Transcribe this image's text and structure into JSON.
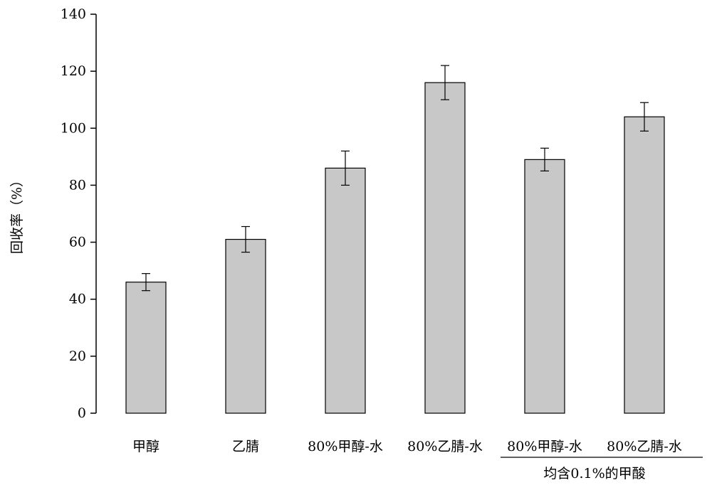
{
  "chart_data": {
    "type": "bar",
    "title": "",
    "xlabel": "",
    "ylabel": "回收率（%）",
    "ylim": [
      0,
      140
    ],
    "yticks": [
      0,
      20,
      40,
      60,
      80,
      100,
      120,
      140
    ],
    "grid": false,
    "categories": [
      "甲醇",
      "乙腈",
      "80%甲醇-水",
      "80%乙腈-水",
      "80%甲醇-水",
      "80%乙腈-水"
    ],
    "values": [
      46,
      61,
      86,
      116,
      89,
      104
    ],
    "errors": [
      3,
      4.5,
      6,
      6,
      4,
      5
    ],
    "group_note": "均含0.1%的甲酸",
    "group_note_spans": [
      4,
      5
    ],
    "colors": {
      "bar_fill": "#c8c8c8",
      "bar_stroke": "#000000",
      "axis": "#000000"
    }
  }
}
